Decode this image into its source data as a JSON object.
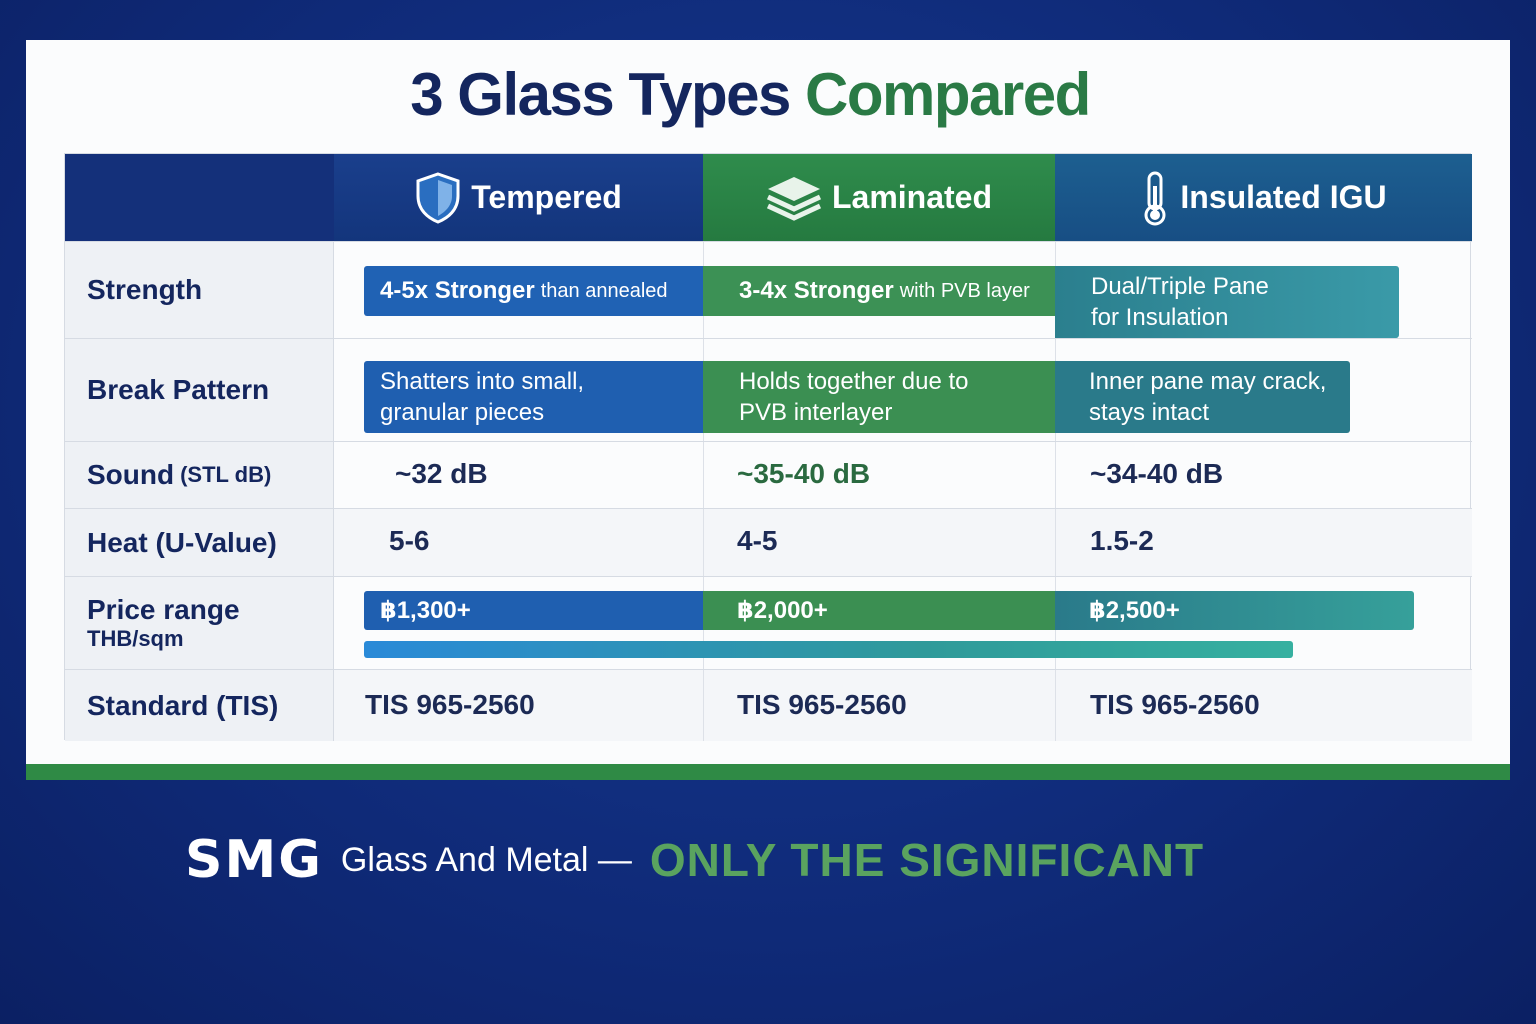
{
  "title": {
    "part1": "3 Glass Types",
    "part2": "Compared"
  },
  "colors": {
    "tempered": "#1f5fb0",
    "laminated": "#3b8f52",
    "insulated": "#2a8593",
    "background": "#0f2a78"
  },
  "columns": [
    {
      "label": "Tempered",
      "icon": "shield-icon"
    },
    {
      "label": "Laminated",
      "icon": "layers-icon"
    },
    {
      "label": "Insulated IGU",
      "icon": "thermometer-icon"
    }
  ],
  "rows": {
    "strength": {
      "label": "Strength",
      "values": [
        {
          "bold": "4-5x Stronger",
          "thin": "than annealed"
        },
        {
          "bold": "3-4x Stronger",
          "thin": "with PVB layer"
        },
        {
          "bold": "Dual/Triple Pane",
          "thin": "for Insulation"
        }
      ]
    },
    "break": {
      "label": "Break Pattern",
      "values": [
        {
          "bold": "Shatters into small,",
          "thin": "granular pieces"
        },
        {
          "bold": "Holds together due to",
          "thin": "PVB interlayer"
        },
        {
          "bold": "Inner pane may crack,",
          "thin": "stays intact"
        }
      ]
    },
    "sound": {
      "label": "Sound",
      "unit": "(STL dB)",
      "values": [
        "~32 dB",
        "~35-40 dB",
        "~34-40 dB"
      ]
    },
    "heat": {
      "label": "Heat (U-Value)",
      "values": [
        "5-6",
        "4-5",
        "1.5-2"
      ]
    },
    "price": {
      "label": "Price range",
      "unit": "THB/sqm",
      "values": [
        "฿1,300+",
        "฿2,000+",
        "฿2,500+"
      ]
    },
    "standard": {
      "label": "Standard (TIS)",
      "values": [
        "TIS 965-2560",
        "TIS 965-2560",
        "TIS 965-2560"
      ]
    }
  },
  "footer": {
    "logo": "SMG",
    "company": "Glass And Metal —",
    "slogan": "ONLY THE SIGNIFICANT"
  }
}
